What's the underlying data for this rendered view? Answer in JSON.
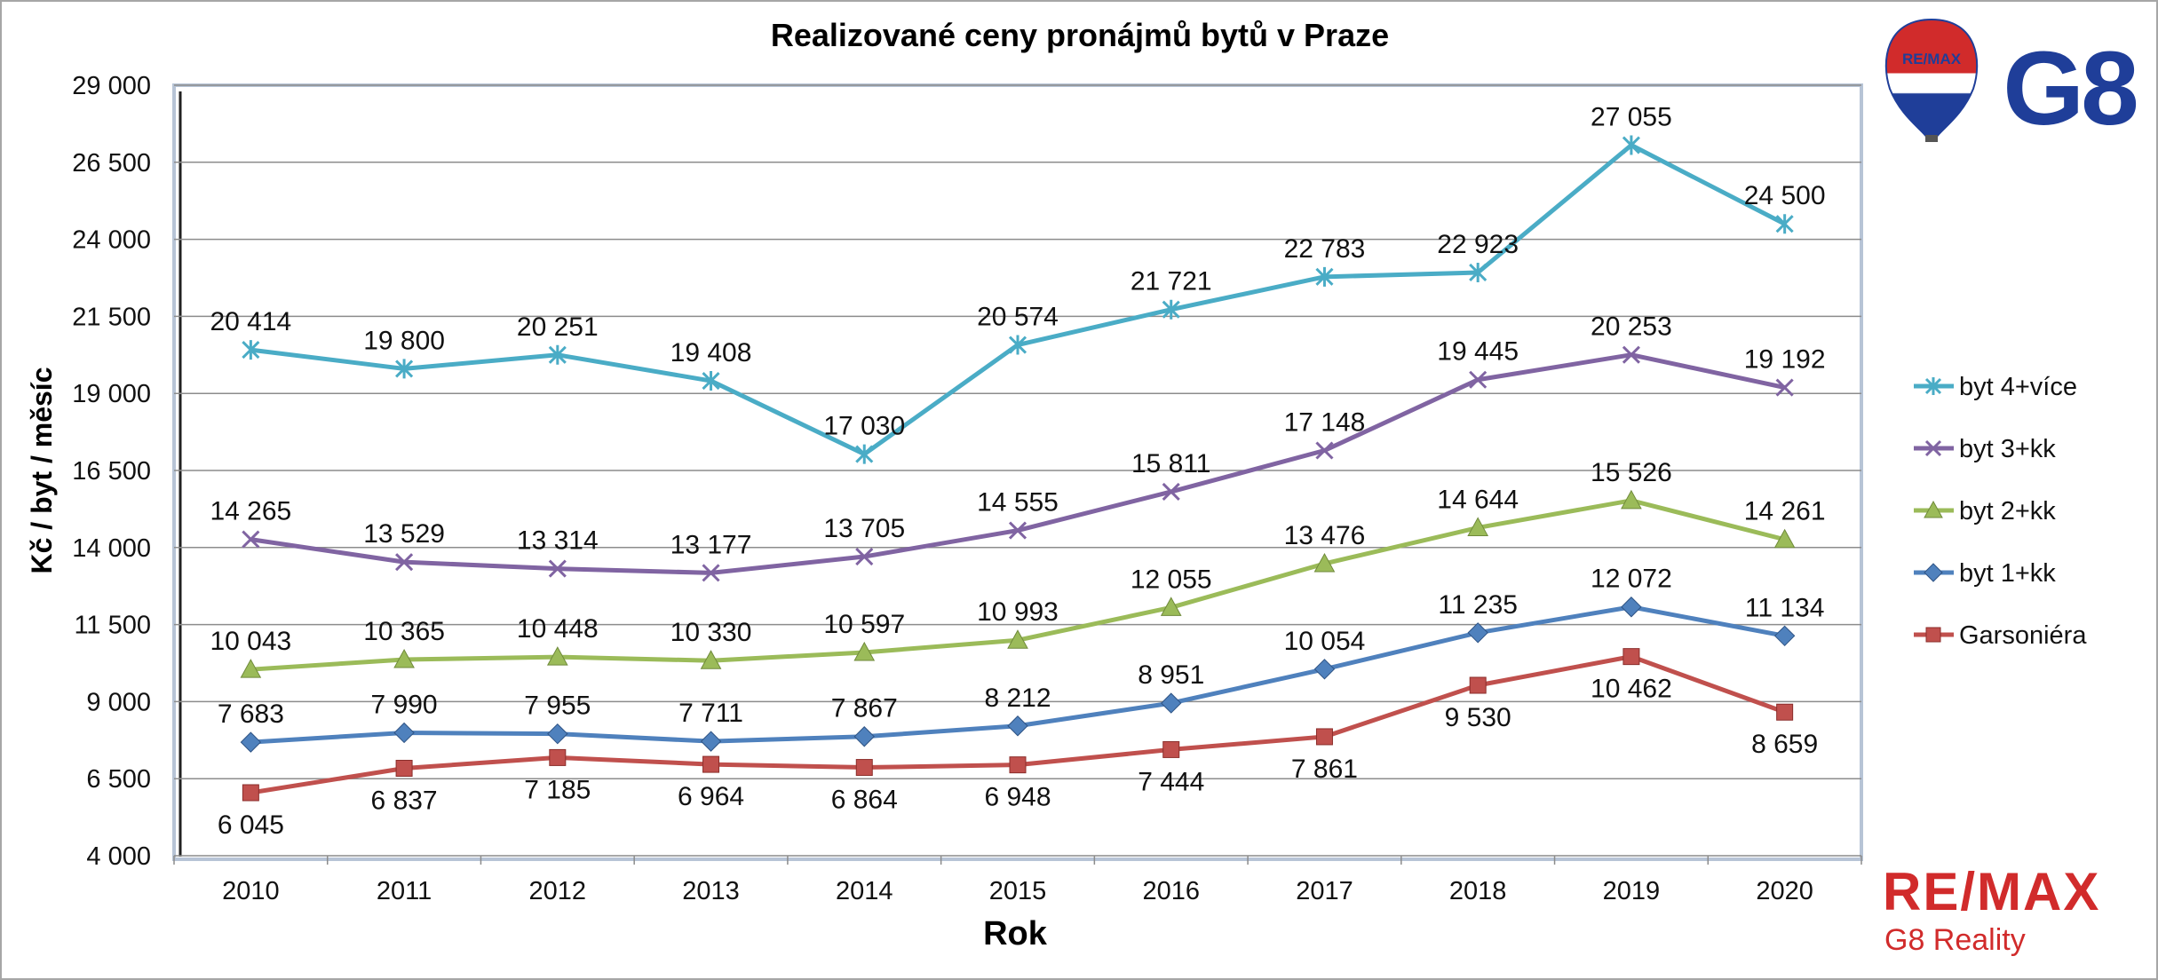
{
  "chart_data": {
    "type": "line",
    "title": "Realizované ceny pronájmů bytů v Praze",
    "xlabel": "Rok",
    "ylabel": "Kč / byt / měsíc",
    "categories": [
      "2010",
      "2011",
      "2012",
      "2013",
      "2014",
      "2015",
      "2016",
      "2017",
      "2018",
      "2019",
      "2020"
    ],
    "ylim": [
      4000,
      29000
    ],
    "yticks": [
      4000,
      6500,
      9000,
      11500,
      14000,
      16500,
      19000,
      21500,
      24000,
      26500,
      29000
    ],
    "ytick_labels": [
      "4 000",
      "6 500",
      "9 000",
      "11 500",
      "14 000",
      "16 500",
      "19 000",
      "21 500",
      "24 000",
      "26 500",
      "29 000"
    ],
    "grid": true,
    "legend_position": "right",
    "series": [
      {
        "name": "byt 4+více",
        "color": "#4aacc6",
        "marker": "asterisk",
        "values": [
          20414,
          19800,
          20251,
          19408,
          17030,
          20574,
          21721,
          22783,
          22923,
          27055,
          24500
        ],
        "labels": [
          "20 414",
          "19 800",
          "20 251",
          "19 408",
          "17 030",
          "20 574",
          "21 721",
          "22 783",
          "22 923",
          "27 055",
          "24 500"
        ]
      },
      {
        "name": "byt 3+kk",
        "color": "#8064a2",
        "marker": "x",
        "values": [
          14265,
          13529,
          13314,
          13177,
          13705,
          14555,
          15811,
          17148,
          19445,
          20253,
          19192
        ],
        "labels": [
          "14 265",
          "13 529",
          "13 314",
          "13 177",
          "13 705",
          "14 555",
          "15 811",
          "17 148",
          "19 445",
          "20 253",
          "19 192"
        ]
      },
      {
        "name": "byt 2+kk",
        "color": "#9bbb59",
        "marker": "triangle",
        "values": [
          10043,
          10365,
          10448,
          10330,
          10597,
          10993,
          12055,
          13476,
          14644,
          15526,
          14261
        ],
        "labels": [
          "10 043",
          "10 365",
          "10 448",
          "10 330",
          "10 597",
          "10 993",
          "12 055",
          "13 476",
          "14 644",
          "15 526",
          "14 261"
        ]
      },
      {
        "name": "byt 1+kk",
        "color": "#4f81bd",
        "marker": "diamond",
        "values": [
          7683,
          7990,
          7955,
          7711,
          7867,
          8212,
          8951,
          10054,
          11235,
          12072,
          11134
        ],
        "labels": [
          "7 683",
          "7 990",
          "7 955",
          "7 711",
          "7 867",
          "8 212",
          "8 951",
          "10 054",
          "11 235",
          "12 072",
          "11 134"
        ]
      },
      {
        "name": "Garsoniéra",
        "color": "#c0504d",
        "marker": "square",
        "values": [
          6045,
          6837,
          7185,
          6964,
          6864,
          6948,
          7444,
          7861,
          9530,
          10462,
          8659
        ],
        "labels": [
          "6 045",
          "6 837",
          "7 185",
          "6 964",
          "6 864",
          "6 948",
          "7 444",
          "7 861",
          "9 530",
          "10 462",
          "8 659"
        ]
      }
    ]
  },
  "branding": {
    "balloon_text": "RE/MAX",
    "office_text": "G8",
    "footer_brand": "RE/MAX",
    "footer_sub": "G8 Reality",
    "brand_red": "#d12b2b",
    "brand_blue": "#1f3e99"
  }
}
